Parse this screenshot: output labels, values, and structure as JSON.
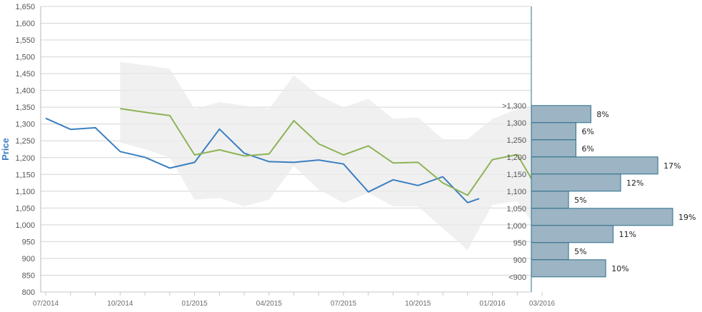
{
  "chart_data": {
    "type": "line",
    "ylabel": "Price",
    "ylim": [
      800,
      1650
    ],
    "yticks": [
      800,
      850,
      900,
      950,
      1000,
      1050,
      1100,
      1150,
      1200,
      1250,
      1300,
      1350,
      1400,
      1450,
      1500,
      1550,
      1600,
      1650
    ],
    "ytick_labels": [
      "800",
      "850",
      "900",
      "950",
      "1,000",
      "1,050",
      "1,100",
      "1,150",
      "1,200",
      "1,250",
      "1,300",
      "1,350",
      "1,400",
      "1,450",
      "1,500",
      "1,550",
      "1,600",
      "1,650"
    ],
    "xtick_labels": [
      "07/2014",
      "10/2014",
      "01/2015",
      "04/2015",
      "07/2015",
      "10/2015",
      "01/2016",
      "03/2016"
    ],
    "grid": true,
    "months": [
      "2014-07",
      "2014-08",
      "2014-09",
      "2014-10",
      "2014-11",
      "2014-12",
      "2015-01",
      "2015-02",
      "2015-03",
      "2015-04",
      "2015-05",
      "2015-06",
      "2015-07",
      "2015-08",
      "2015-09",
      "2015-10",
      "2015-11",
      "2015-12",
      "2016-01",
      "2016-02",
      "2016-03"
    ],
    "series": [
      {
        "color": "#3a7fc1",
        "values": [
          1317,
          1284,
          1289,
          1218,
          1201,
          1169,
          1186,
          1285,
          1213,
          1188,
          1186,
          1193,
          1181,
          1098,
          1134,
          1117,
          1143,
          1066,
          null,
          null,
          null
        ],
        "extra_x": "2015-12-15",
        "extra_y": 1078
      },
      {
        "color": "#8db356",
        "values": [
          null,
          null,
          null,
          1346,
          1335,
          1325,
          1208,
          1223,
          1205,
          1211,
          1310,
          1241,
          1208,
          1235,
          1184,
          1186,
          1125,
          1088,
          1194,
          1209,
          1084
        ],
        "extra_x": "2016-03-15",
        "extra_y": 1095
      }
    ],
    "band": {
      "color": "#ebebeb",
      "upper": [
        null,
        null,
        null,
        1485,
        1475,
        1465,
        1345,
        1365,
        1355,
        1345,
        1445,
        1385,
        1350,
        1375,
        1315,
        1320,
        1255,
        1255,
        1315,
        1345,
        1355
      ],
      "lower": [
        null,
        null,
        null,
        1245,
        1225,
        1200,
        1075,
        1080,
        1055,
        1075,
        1175,
        1105,
        1065,
        1095,
        1055,
        1055,
        990,
        925,
        1060,
        1070,
        965
      ]
    },
    "histogram": {
      "color": "#9cb4c3",
      "bins": [
        ">1,300",
        "1,300",
        "1,250",
        "1,200",
        "1,150",
        "1,100",
        "1,050",
        "1,000",
        "950",
        "900",
        "<900"
      ],
      "values": [
        8,
        6,
        6,
        17,
        12,
        5,
        19,
        11,
        5,
        10
      ],
      "labels": [
        "8%",
        "6%",
        "6%",
        "17%",
        "12%",
        "5%",
        "19%",
        "11%",
        "5%",
        "10%"
      ]
    }
  }
}
